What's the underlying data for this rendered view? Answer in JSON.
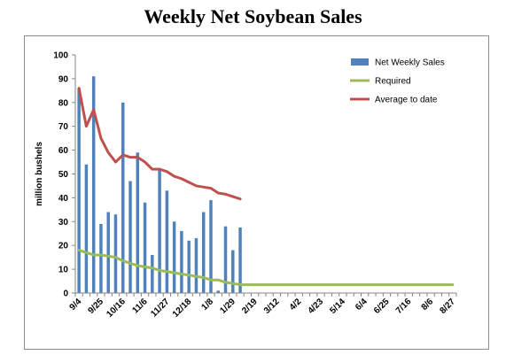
{
  "chart_data": {
    "type": "bar",
    "title": "Weekly Net Soybean Sales",
    "ylabel": "million bushels",
    "xlabel": "",
    "ylim": [
      0,
      100
    ],
    "y_ticks": [
      0,
      10,
      20,
      30,
      40,
      50,
      60,
      70,
      80,
      90,
      100
    ],
    "x_tick_labels": [
      "9/4",
      "9/25",
      "10/16",
      "11/6",
      "11/27",
      "12/18",
      "1/8",
      "1/29",
      "2/19",
      "3/12",
      "4/2",
      "4/23",
      "5/14",
      "6/4",
      "6/25",
      "7/16",
      "8/6",
      "8/27"
    ],
    "x_tick_week_index": [
      0,
      3,
      6,
      9,
      12,
      15,
      18,
      21,
      24,
      27,
      30,
      33,
      36,
      39,
      42,
      45,
      48,
      51
    ],
    "num_weeks": 52,
    "legend_position": "top-right",
    "series": [
      {
        "name": "Net Weekly Sales",
        "type": "bar",
        "color": "#4f81bd",
        "values": [
          86,
          54,
          91,
          29,
          34,
          33,
          80,
          47,
          59,
          38,
          16,
          52,
          43,
          30,
          26,
          22,
          23,
          34,
          39,
          1,
          28,
          18,
          27.5
        ]
      },
      {
        "name": "Required",
        "type": "line",
        "color": "#9bbb59",
        "values": [
          18,
          17,
          16,
          16,
          15.5,
          15,
          13.5,
          12.5,
          11.5,
          11,
          10.5,
          9.5,
          9,
          8.5,
          8,
          7.5,
          7,
          6.5,
          5.5,
          5.5,
          4.5,
          4,
          3.5,
          3.5,
          3.5,
          3.5,
          3.5,
          3.5,
          3.5,
          3.5,
          3.5,
          3.5,
          3.5,
          3.5,
          3.5,
          3.5,
          3.5,
          3.5,
          3.5,
          3.5,
          3.5,
          3.5,
          3.5,
          3.5,
          3.5,
          3.5,
          3.5,
          3.5,
          3.5,
          3.5,
          3.5,
          3.5
        ]
      },
      {
        "name": "Average to date",
        "type": "line",
        "color": "#c0504d",
        "values": [
          86,
          70,
          77,
          65,
          59,
          55,
          58,
          57,
          57,
          55,
          52,
          52,
          51,
          49,
          48,
          46.5,
          45,
          44.5,
          44,
          42,
          41.5,
          40.5,
          39.5
        ]
      }
    ]
  }
}
